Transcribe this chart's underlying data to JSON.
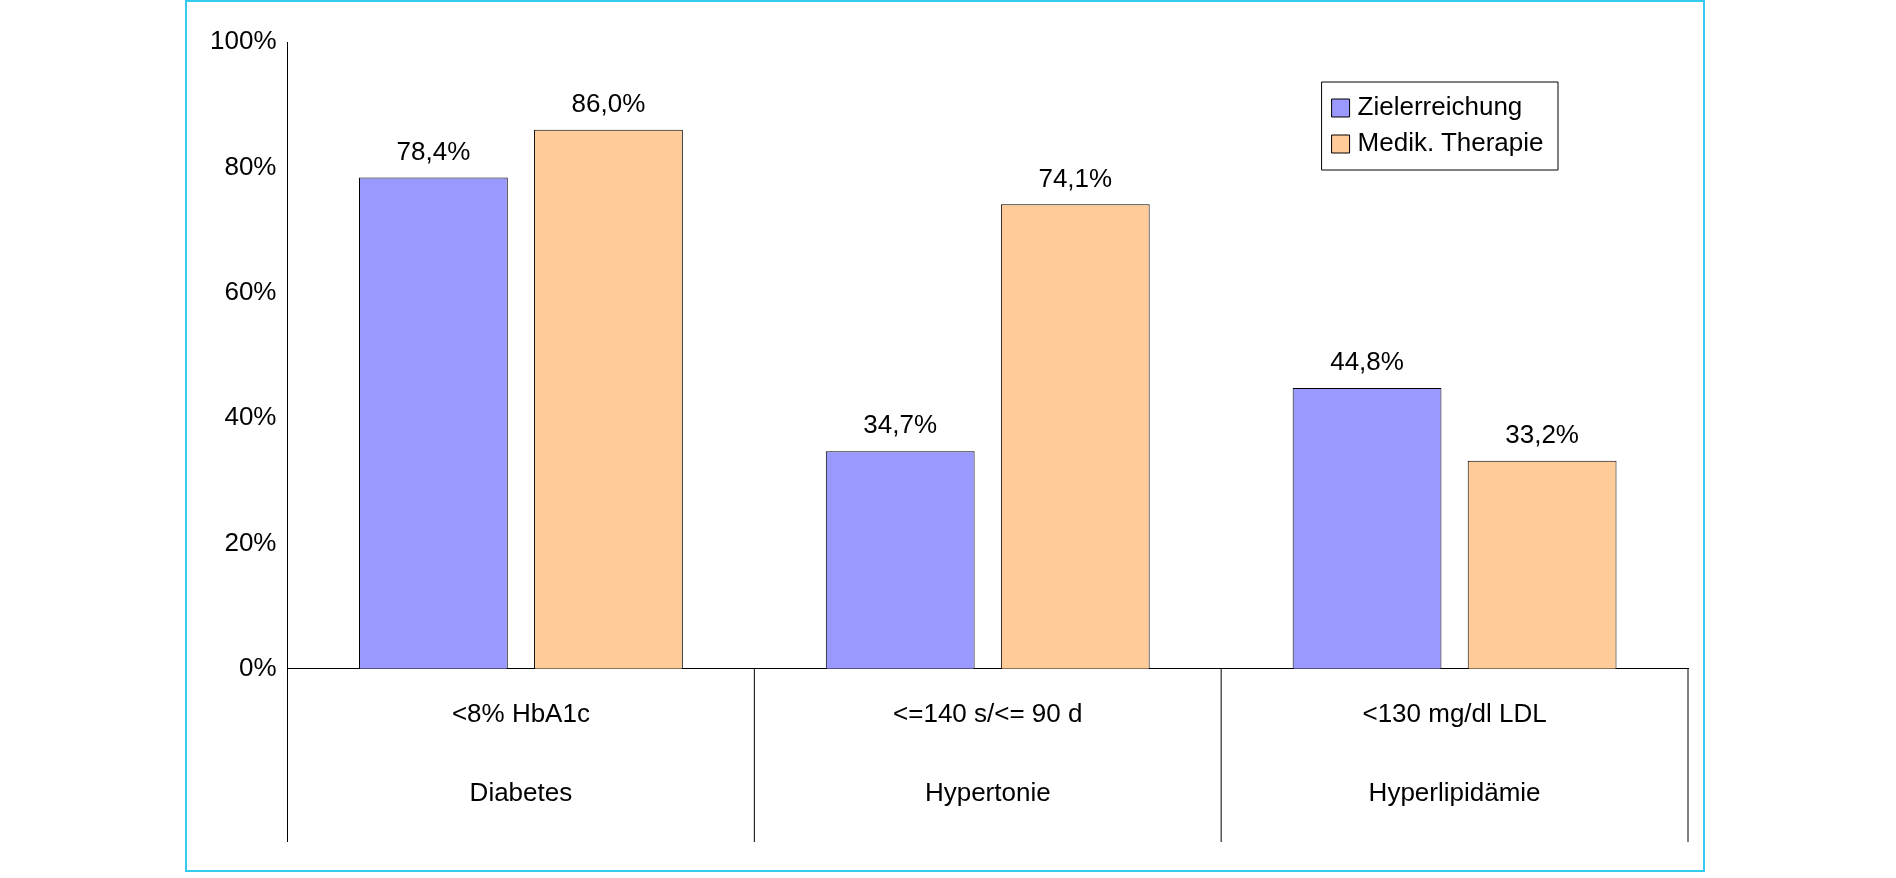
{
  "chart_data": {
    "type": "bar",
    "categories": [
      "<8% HbA1c",
      "<=140 s/<= 90 d",
      "<130 mg/dl LDL"
    ],
    "series": [
      {
        "name": "Zielerreichung",
        "color": "#9999ff",
        "values": [
          78.4,
          34.7,
          44.8
        ],
        "value_labels": [
          "78,4%",
          "34,7%",
          "44,8%"
        ]
      },
      {
        "name": "Medik. Therapie",
        "color": "#ffcc99",
        "values": [
          86.0,
          74.1,
          33.2
        ],
        "value_labels": [
          "86,0%",
          "74,1%",
          "33,2%"
        ]
      }
    ],
    "ylim": [
      0,
      100
    ],
    "yticks": [
      {
        "value": 0,
        "label": "0%"
      },
      {
        "value": 20,
        "label": "20%"
      },
      {
        "value": 40,
        "label": "40%"
      },
      {
        "value": 60,
        "label": "60%"
      },
      {
        "value": 80,
        "label": "80%"
      },
      {
        "value": 100,
        "label": "100%"
      }
    ],
    "annotations": [
      "Diabetes",
      "Hypertonie",
      "Hyperlipidämie"
    ],
    "grid": false,
    "legend": "top right"
  }
}
